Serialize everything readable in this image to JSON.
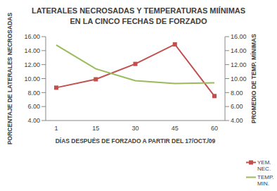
{
  "chart_data": {
    "type": "line",
    "title": "LATERALES NECROSADAS Y TEMPERATURAS MIÍNIMAS\nEN LA CINCO FECHAS DE FORZADO",
    "x_label": "DÍAS DESPUÉS DE FORZADO A PARTIR DEL 17/OCT./09",
    "y_label": "PORCENTAJE DE LATERALES NECROSADAS",
    "y2_label": "PROMEDIO DE TEMP. MÍNIMAS",
    "categories": [
      "1",
      "15",
      "30",
      "45",
      "60"
    ],
    "series": [
      {
        "name": "YEM. NEC.",
        "color": "#c0504d",
        "marker": "square",
        "values": [
          8.7,
          9.9,
          12.1,
          14.9,
          7.5
        ]
      },
      {
        "name": "TEMP. MIN.",
        "color": "#9bbb59",
        "marker": "none",
        "axis": "y2",
        "values": [
          14.8,
          11.4,
          9.7,
          9.3,
          9.4
        ]
      }
    ],
    "ylim": [
      4,
      16
    ],
    "yticks": [
      {
        "value": 4,
        "label": "4.00"
      },
      {
        "value": 6,
        "label": "6.00"
      },
      {
        "value": 8,
        "label": "8.00"
      },
      {
        "value": 10,
        "label": "10.00"
      },
      {
        "value": 12,
        "label": "12.00"
      },
      {
        "value": 14,
        "label": "14.00"
      },
      {
        "value": 16,
        "label": "16.00"
      }
    ],
    "y2lim": [
      4,
      16
    ],
    "y2ticks": [
      {
        "value": 4,
        "label": "4.00"
      },
      {
        "value": 6,
        "label": "6.00"
      },
      {
        "value": 8,
        "label": "8.00"
      },
      {
        "value": 10,
        "label": "10.00"
      },
      {
        "value": 12,
        "label": "12.00"
      },
      {
        "value": 14,
        "label": "14.00"
      },
      {
        "value": 16,
        "label": "16.00"
      }
    ],
    "grid": false,
    "legend": "lower right"
  }
}
